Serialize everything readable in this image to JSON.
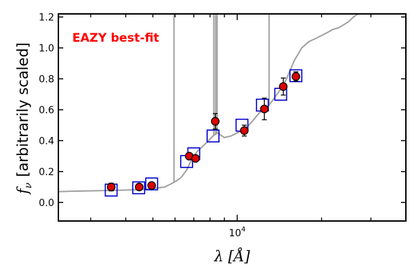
{
  "chart_data": {
    "type": "scatter",
    "xscale": "log",
    "xlim": [
      2300,
      40000
    ],
    "ylim": [
      -0.12,
      1.22
    ],
    "x_ticks": [
      {
        "value": 10000,
        "label": "10^4"
      }
    ],
    "y_ticks": [
      {
        "value": 0.0,
        "label": "0.0"
      },
      {
        "value": 0.2,
        "label": "0.2"
      },
      {
        "value": 0.4,
        "label": "0.4"
      },
      {
        "value": 0.6,
        "label": "0.6"
      },
      {
        "value": 0.8,
        "label": "0.8"
      },
      {
        "value": 1.0,
        "label": "1.0"
      },
      {
        "value": 1.2,
        "label": "1.2"
      }
    ],
    "xlabel": "λ [Å]",
    "ylabel": "f_ν  [arbitrarily scaled]",
    "ylabel_main": "[arbitrarily scaled]",
    "ylabel_symbol": "f",
    "ylabel_subscript": "ν",
    "annotation": {
      "text": "EAZY best-fit",
      "color": "#ff0000"
    },
    "colors": {
      "template": "#a0a0a0",
      "observed": "#dd0000",
      "model": "#0000cc",
      "axis": "#000000"
    },
    "template_spectrum": {
      "x": [
        2300,
        2500,
        3000,
        3500,
        4000,
        4500,
        5000,
        5500,
        5800,
        5950,
        6300,
        6600,
        6800,
        7000,
        7200,
        7500,
        7800,
        8000,
        8200,
        8500,
        9000,
        9500,
        10000,
        10500,
        11000,
        11500,
        12000,
        12500,
        13000,
        13500,
        14000,
        14500,
        15000,
        15500,
        16000,
        16500,
        17000,
        17500,
        18000,
        19000,
        20000,
        21000,
        22000,
        23000,
        24000,
        25000,
        26000,
        27000
      ],
      "y": [
        0.07,
        0.072,
        0.075,
        0.078,
        0.08,
        0.083,
        0.09,
        0.1,
        0.12,
        0.13,
        0.16,
        0.21,
        0.26,
        0.3,
        0.33,
        0.36,
        0.39,
        0.41,
        0.43,
        0.45,
        0.42,
        0.43,
        0.45,
        0.47,
        0.5,
        0.54,
        0.58,
        0.6,
        0.63,
        0.67,
        0.71,
        0.75,
        0.8,
        0.86,
        0.92,
        0.96,
        1.0,
        1.02,
        1.04,
        1.06,
        1.08,
        1.1,
        1.12,
        1.13,
        1.15,
        1.17,
        1.2,
        1.22
      ]
    },
    "emission_lines": [
      {
        "x": 5950,
        "peak": 1.22
      },
      {
        "x": 8250,
        "peak": 1.22
      },
      {
        "x": 8380,
        "peak": 1.22
      },
      {
        "x": 8480,
        "peak": 1.22
      },
      {
        "x": 13000,
        "peak": 1.22
      }
    ],
    "observed": [
      {
        "x": 3550,
        "y": 0.1,
        "err": 0.025
      },
      {
        "x": 4470,
        "y": 0.1,
        "err": 0.015
      },
      {
        "x": 4950,
        "y": 0.11,
        "err": 0.015
      },
      {
        "x": 6740,
        "y": 0.3,
        "err": 0.015
      },
      {
        "x": 7100,
        "y": 0.285,
        "err": 0.015
      },
      {
        "x": 8350,
        "y": 0.525,
        "err": 0.05
      },
      {
        "x": 10600,
        "y": 0.465,
        "err": 0.035
      },
      {
        "x": 12500,
        "y": 0.605,
        "err": 0.07
      },
      {
        "x": 14600,
        "y": 0.75,
        "err": 0.055
      },
      {
        "x": 16200,
        "y": 0.815,
        "err": 0.03
      }
    ],
    "model": [
      {
        "x": 3550,
        "y": 0.08
      },
      {
        "x": 4450,
        "y": 0.095
      },
      {
        "x": 4950,
        "y": 0.12
      },
      {
        "x": 6600,
        "y": 0.265
      },
      {
        "x": 7000,
        "y": 0.315
      },
      {
        "x": 8200,
        "y": 0.43
      },
      {
        "x": 10400,
        "y": 0.5
      },
      {
        "x": 12300,
        "y": 0.63
      },
      {
        "x": 14300,
        "y": 0.7
      },
      {
        "x": 16200,
        "y": 0.82
      }
    ]
  }
}
